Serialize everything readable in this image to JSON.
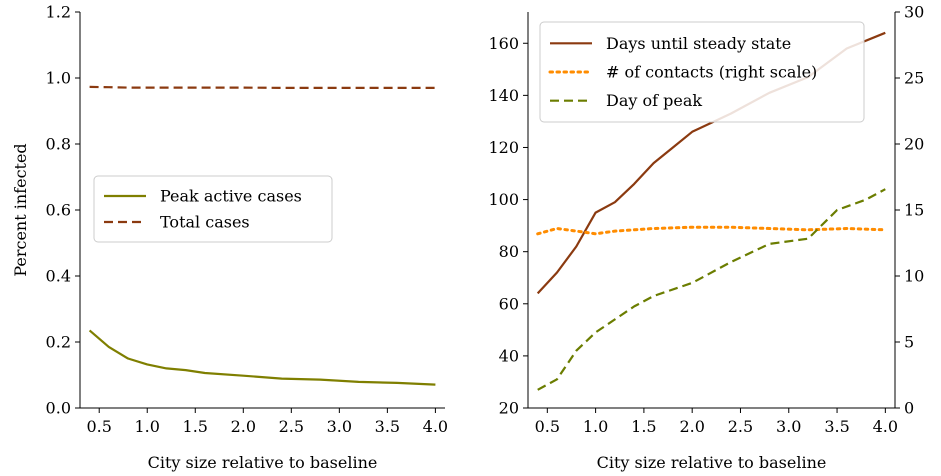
{
  "chart_data": [
    {
      "type": "line",
      "xlabel": "City size relative to baseline",
      "ylabel": "Percent infected",
      "xlim": [
        0.3,
        4.1
      ],
      "ylim": [
        0,
        1.2
      ],
      "xticks": [
        0.5,
        1.0,
        1.5,
        2.0,
        2.5,
        3.0,
        3.5,
        4.0
      ],
      "xtick_labels": [
        "0.5",
        "1.0",
        "1.5",
        "2.0",
        "2.5",
        "3.0",
        "3.5",
        "4.0"
      ],
      "yticks": [
        0,
        0.2,
        0.4,
        0.6,
        0.8,
        1.0,
        1.2
      ],
      "ytick_labels": [
        "0.0",
        "0.2",
        "0.4",
        "0.6",
        "0.8",
        "1.0",
        "1.2"
      ],
      "legend_position": "center-left",
      "grid": false,
      "series": [
        {
          "name": "Peak active cases",
          "color": "#7f7f00",
          "dash": "solid",
          "x": [
            0.4,
            0.6,
            0.8,
            1.0,
            1.2,
            1.4,
            1.6,
            2.0,
            2.4,
            2.8,
            3.2,
            3.6,
            4.0
          ],
          "y": [
            0.235,
            0.185,
            0.15,
            0.132,
            0.12,
            0.115,
            0.106,
            0.098,
            0.089,
            0.086,
            0.079,
            0.076,
            0.071
          ]
        },
        {
          "name": "Total cases",
          "color": "#8b3a10",
          "dash": "dashed",
          "x": [
            0.4,
            0.6,
            0.8,
            1.0,
            1.2,
            1.4,
            1.6,
            2.0,
            2.4,
            2.8,
            3.2,
            3.6,
            4.0
          ],
          "y": [
            0.973,
            0.972,
            0.971,
            0.971,
            0.971,
            0.971,
            0.971,
            0.971,
            0.97,
            0.97,
            0.97,
            0.97,
            0.97
          ]
        }
      ]
    },
    {
      "type": "line",
      "xlabel": "City size relative to baseline",
      "ylabel": "",
      "xlim": [
        0.3,
        4.1
      ],
      "ylim": [
        20,
        172
      ],
      "y2lim": [
        0,
        30
      ],
      "xticks": [
        0.5,
        1.0,
        1.5,
        2.0,
        2.5,
        3.0,
        3.5,
        4.0
      ],
      "xtick_labels": [
        "0.5",
        "1.0",
        "1.5",
        "2.0",
        "2.5",
        "3.0",
        "3.5",
        "4.0"
      ],
      "yticks": [
        20,
        40,
        60,
        80,
        100,
        120,
        140,
        160
      ],
      "ytick_labels": [
        "20",
        "40",
        "60",
        "80",
        "100",
        "120",
        "140",
        "160"
      ],
      "y2ticks": [
        0,
        5,
        10,
        15,
        20,
        25,
        30
      ],
      "y2tick_labels": [
        "0",
        "5",
        "10",
        "15",
        "20",
        "25",
        "30"
      ],
      "legend_position": "top-left",
      "grid": false,
      "series": [
        {
          "name": "Days until steady state",
          "axis": "left",
          "color": "#8b3a10",
          "dash": "solid",
          "x": [
            0.4,
            0.6,
            0.8,
            1.0,
            1.2,
            1.4,
            1.6,
            1.8,
            2.0,
            2.4,
            2.8,
            3.2,
            3.6,
            4.0
          ],
          "y": [
            64,
            72,
            82,
            95,
            99,
            106,
            114,
            120,
            126,
            133,
            141,
            147,
            158,
            164
          ]
        },
        {
          "name": "# of contacts (right scale)",
          "axis": "right",
          "color": "#ff8c00",
          "dash": "dotted",
          "x": [
            0.4,
            0.6,
            0.8,
            1.0,
            1.2,
            1.4,
            1.6,
            2.0,
            2.4,
            2.8,
            3.2,
            3.6,
            4.0
          ],
          "y": [
            13.2,
            13.6,
            13.4,
            13.2,
            13.4,
            13.5,
            13.6,
            13.7,
            13.7,
            13.6,
            13.5,
            13.6,
            13.5
          ]
        },
        {
          "name": "Day of peak",
          "axis": "left",
          "color": "#6b7d00",
          "dash": "dashed",
          "x": [
            0.4,
            0.6,
            0.8,
            1.0,
            1.2,
            1.4,
            1.6,
            2.0,
            2.4,
            2.8,
            3.2,
            3.5,
            3.8,
            4.0
          ],
          "y": [
            27,
            31,
            42,
            49,
            54,
            59,
            63,
            68,
            76,
            83,
            85,
            96,
            100,
            104
          ]
        }
      ]
    }
  ]
}
